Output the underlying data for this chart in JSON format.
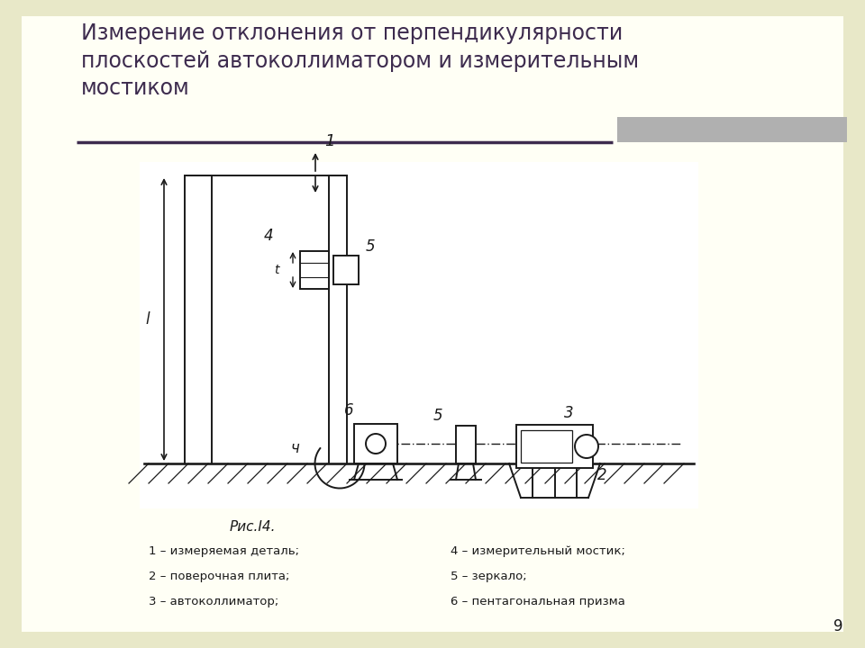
{
  "bg_color": "#e8e8c8",
  "slide_bg": "#fffff5",
  "title": "Измерение отклонения от перпендикулярности\nплоскостей автоколлиматором и измерительным\nмостиком",
  "title_color": "#3d2b4e",
  "title_fontsize": 17,
  "caption": "Рис.I4.",
  "legend_left": [
    "1 – измеряемая деталь;",
    "2 – поверочная плита;",
    "3 – автоколлиматор;"
  ],
  "legend_right": [
    "4 – измерительный мостик;",
    "5 – зеркало;",
    "6 – пентагональная призма"
  ],
  "page_number": "9",
  "line_color": "#1a1a1a"
}
